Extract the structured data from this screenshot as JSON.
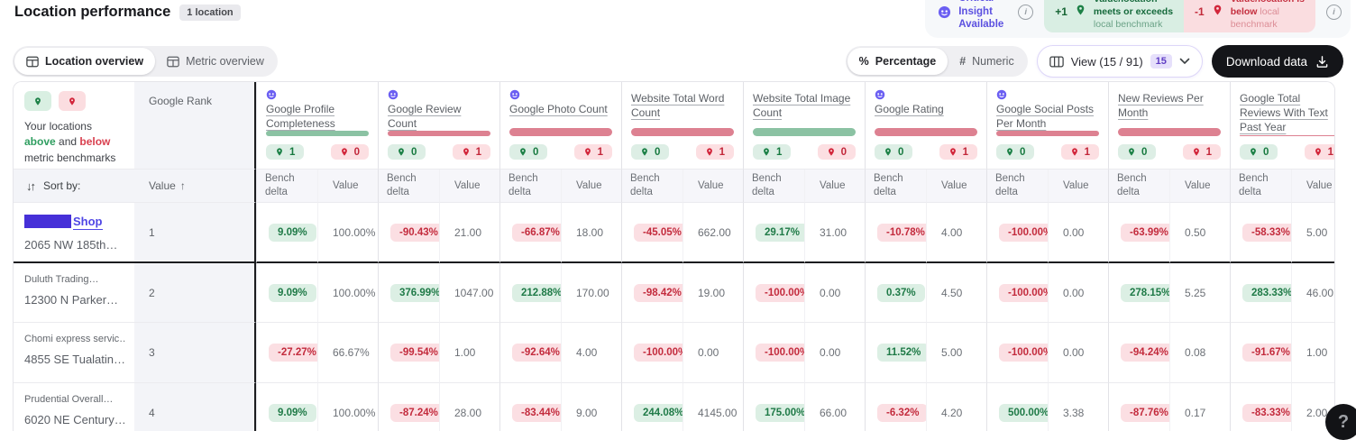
{
  "header": {
    "title": "Location performance",
    "badge": "1 location"
  },
  "legend": {
    "insight_label": "Critical Insight Available",
    "above": {
      "delta": "+1",
      "line1": "Value/location",
      "line2": "meets or exceeds",
      "line3": "local benchmark"
    },
    "below": {
      "delta": "-1",
      "line1": "Value/location is",
      "bold": "below",
      "light_inline": " local",
      "line3": "benchmark"
    }
  },
  "toolbar": {
    "tabs": [
      {
        "label": "Location overview",
        "active": true
      },
      {
        "label": "Metric overview",
        "active": false
      }
    ],
    "modes": [
      {
        "label": "Percentage",
        "icon": "%",
        "active": true
      },
      {
        "label": "Numeric",
        "icon": "#",
        "active": false
      }
    ],
    "view_label": "View (15 / 91)",
    "view_badge": "15",
    "download_label": "Download data"
  },
  "icons": {
    "sort": "↓↑",
    "asc": "↑",
    "info": "i"
  },
  "table": {
    "location_header_parts": [
      {
        "text": "Your locations ",
        "style": "plain"
      },
      {
        "text": "above",
        "style": "green"
      },
      {
        "text": " and ",
        "style": "plain"
      },
      {
        "text": "below",
        "style": "red"
      },
      {
        "text": " metric benchmarks",
        "style": "plain"
      }
    ],
    "rank_header": "Google Rank",
    "sort_label": "Sort by:",
    "sort_value": "Value",
    "subheaders": {
      "bench": "Bench delta",
      "value": "Value"
    },
    "metrics": [
      {
        "name": "Google Profile Completeness",
        "insight": true,
        "bar": "green",
        "above": "1",
        "below": "0"
      },
      {
        "name": "Google Review Count",
        "insight": true,
        "bar": "red",
        "above": "0",
        "below": "1"
      },
      {
        "name": "Google Photo Count",
        "insight": true,
        "bar": "red",
        "above": "0",
        "below": "1"
      },
      {
        "name": "Website Total Word Count",
        "insight": false,
        "bar": "red",
        "above": "0",
        "below": "1"
      },
      {
        "name": "Website Total Image Count",
        "insight": false,
        "bar": "green",
        "above": "1",
        "below": "0"
      },
      {
        "name": "Google Rating",
        "insight": true,
        "bar": "red",
        "above": "0",
        "below": "1"
      },
      {
        "name": "Google Social Posts Per Month",
        "insight": true,
        "bar": "red",
        "above": "0",
        "below": "1"
      },
      {
        "name": "New Reviews Per Month",
        "insight": false,
        "bar": "red",
        "above": "0",
        "below": "1"
      },
      {
        "name": "Google Total Reviews With Text Past Year",
        "insight": false,
        "bar": "red",
        "above": "0",
        "below": "1"
      }
    ],
    "rows": [
      {
        "name": "Shop",
        "redacted": true,
        "address": "2065 NW 185th…",
        "rank": "1",
        "highlight": true,
        "cells": [
          {
            "delta": "9.09%",
            "dir": "up",
            "value": "100.00%"
          },
          {
            "delta": "-90.43%",
            "dir": "down",
            "value": "21.00"
          },
          {
            "delta": "-66.87%",
            "dir": "down",
            "value": "18.00"
          },
          {
            "delta": "-45.05%",
            "dir": "down",
            "value": "662.00"
          },
          {
            "delta": "29.17%",
            "dir": "up",
            "value": "31.00"
          },
          {
            "delta": "-10.78%",
            "dir": "down",
            "value": "4.00"
          },
          {
            "delta": "-100.00%",
            "dir": "down",
            "value": "0.00"
          },
          {
            "delta": "-63.99%",
            "dir": "down",
            "value": "0.50"
          },
          {
            "delta": "-58.33%",
            "dir": "down",
            "value": "5.00"
          }
        ]
      },
      {
        "name": "Duluth Trading…",
        "redacted": false,
        "address": "12300 N Parker…",
        "rank": "2",
        "highlight": false,
        "cells": [
          {
            "delta": "9.09%",
            "dir": "up",
            "value": "100.00%"
          },
          {
            "delta": "376.99%",
            "dir": "up",
            "value": "1047.00"
          },
          {
            "delta": "212.88%",
            "dir": "up",
            "value": "170.00"
          },
          {
            "delta": "-98.42%",
            "dir": "down",
            "value": "19.00"
          },
          {
            "delta": "-100.00%",
            "dir": "down",
            "value": "0.00"
          },
          {
            "delta": "0.37%",
            "dir": "up",
            "value": "4.50"
          },
          {
            "delta": "-100.00%",
            "dir": "down",
            "value": "0.00"
          },
          {
            "delta": "278.15%",
            "dir": "up",
            "value": "5.25"
          },
          {
            "delta": "283.33%",
            "dir": "up",
            "value": "46.00"
          }
        ]
      },
      {
        "name": "Chomi express servic…",
        "redacted": false,
        "address": "4855 SE Tualatin…",
        "rank": "3",
        "highlight": false,
        "cells": [
          {
            "delta": "-27.27%",
            "dir": "down",
            "value": "66.67%"
          },
          {
            "delta": "-99.54%",
            "dir": "down",
            "value": "1.00"
          },
          {
            "delta": "-92.64%",
            "dir": "down",
            "value": "4.00"
          },
          {
            "delta": "-100.00%",
            "dir": "down",
            "value": "0.00"
          },
          {
            "delta": "-100.00%",
            "dir": "down",
            "value": "0.00"
          },
          {
            "delta": "11.52%",
            "dir": "up",
            "value": "5.00"
          },
          {
            "delta": "-100.00%",
            "dir": "down",
            "value": "0.00"
          },
          {
            "delta": "-94.24%",
            "dir": "down",
            "value": "0.08"
          },
          {
            "delta": "-91.67%",
            "dir": "down",
            "value": "1.00"
          }
        ]
      },
      {
        "name": "Prudential Overall…",
        "redacted": false,
        "address": "6020 NE Century…",
        "rank": "4",
        "highlight": false,
        "cells": [
          {
            "delta": "9.09%",
            "dir": "up",
            "value": "100.00%"
          },
          {
            "delta": "-87.24%",
            "dir": "down",
            "value": "28.00"
          },
          {
            "delta": "-83.44%",
            "dir": "down",
            "value": "9.00"
          },
          {
            "delta": "244.08%",
            "dir": "up",
            "value": "4145.00"
          },
          {
            "delta": "175.00%",
            "dir": "up",
            "value": "66.00"
          },
          {
            "delta": "-6.32%",
            "dir": "down",
            "value": "4.20"
          },
          {
            "delta": "500.00%",
            "dir": "up",
            "value": "3.38"
          },
          {
            "delta": "-87.76%",
            "dir": "down",
            "value": "0.17"
          },
          {
            "delta": "-83.33%",
            "dir": "down",
            "value": "2.00"
          }
        ]
      }
    ]
  },
  "help_button": {
    "label": "?"
  }
}
